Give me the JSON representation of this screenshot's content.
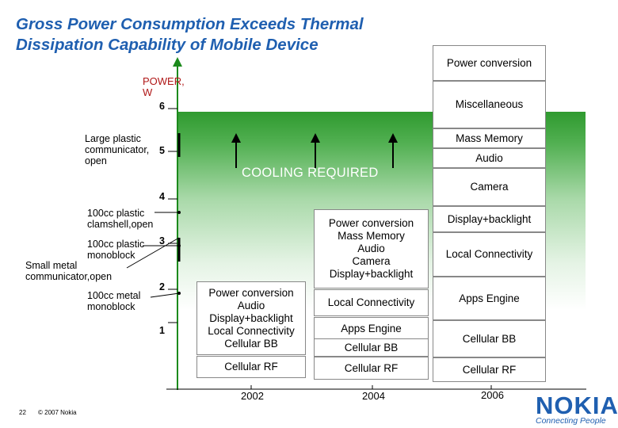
{
  "title": {
    "line1": "Gross Power Consumption Exceeds Thermal",
    "line2": "Dissipation Capability of Mobile Device"
  },
  "chart_data": {
    "type": "bar",
    "title": "Gross Power Consumption Exceeds Thermal Dissipation Capability of Mobile Device",
    "ylabel": "POWER, W",
    "ylim": [
      0,
      6.5
    ],
    "y_ticks": [
      1,
      2,
      3,
      4,
      5,
      6
    ],
    "categories": [
      "2002",
      "2004",
      "2006"
    ],
    "band_label": "COOLING REQUIRED",
    "stacks": [
      {
        "year": "2002",
        "components": [
          "Cellular RF",
          "Power conversion Audio Display+backlight Local Connectivity Cellular BB"
        ],
        "group_lines": [
          "Power conversion",
          "Audio",
          "Display+backlight",
          "Local Connectivity",
          "Cellular BB"
        ],
        "rf_label": "Cellular RF"
      },
      {
        "year": "2004",
        "rf_label": "Cellular RF",
        "bb_label": "Cellular BB",
        "apps_label": "Apps Engine",
        "lc_label": "Local Connectivity",
        "group_lines": [
          "Power conversion",
          "Mass Memory",
          "Audio",
          "Camera",
          "Display+backlight"
        ]
      },
      {
        "year": "2006",
        "rf_label": "Cellular RF",
        "bb_label": "Cellular BB",
        "apps_label": "Apps Engine",
        "lc_label": "Local Connectivity",
        "display_label": "Display+backlight",
        "camera_label": "Camera",
        "audio_label": "Audio",
        "mass_label": "Mass Memory",
        "misc_label": "Miscellaneous",
        "power_label": "Power conversion"
      }
    ],
    "device_limits": [
      {
        "name": "Large plastic communicator, open",
        "value": 5
      },
      {
        "name": "100cc plastic clamshell,open",
        "value": 3.6
      },
      {
        "name": "100cc plastic monoblock",
        "value": 2.8
      },
      {
        "name": "Small metal communicator,open",
        "value": 2.6
      },
      {
        "name": "100cc metal monoblock",
        "value": 1.9
      }
    ],
    "colors": {
      "band": "#52b052",
      "title": "#1f5fb0"
    }
  },
  "footer": {
    "page": "22",
    "copyright": "© 2007 Nokia"
  },
  "logo": {
    "name": "NOKIA",
    "tagline": "Connecting People"
  }
}
